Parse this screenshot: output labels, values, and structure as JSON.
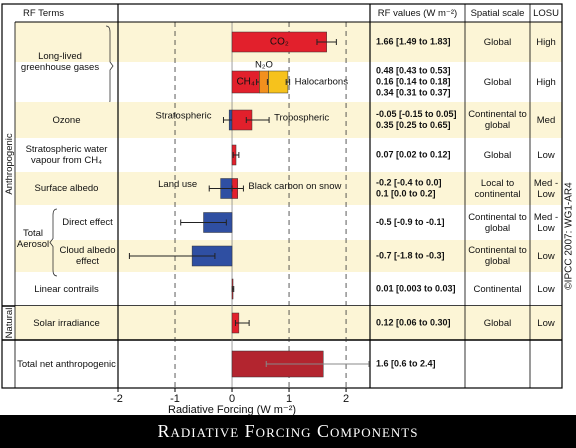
{
  "chart_data": {
    "type": "forcing",
    "title": "Radiative Forcing Components",
    "xlabel": "Radiative Forcing (W m⁻²)",
    "credit": "©IPCC 2007: WG1-AR4",
    "headers": {
      "terms": "RF Terms",
      "values": "RF values (W m⁻²)",
      "scale": "Spatial scale",
      "losu": "LOSU"
    },
    "xlim": [
      -2,
      2.42
    ],
    "xticks": [
      -2,
      -1,
      0,
      1,
      2
    ],
    "grid": true,
    "sections": [
      {
        "name": "Anthropogenic",
        "groups": [
          {
            "label": "Long-lived greenhouse gases",
            "rows": [
              {
                "scale": "Global",
                "losu": "High",
                "bars": [
                  {
                    "name": "CO₂",
                    "value": 1.66,
                    "range": [
                      1.49,
                      1.83
                    ],
                    "value_label": "1.66 [1.49 to 1.83]",
                    "color": "#e2202c"
                  }
                ]
              },
              {
                "scale": "Global",
                "losu": "High",
                "bars": [
                  {
                    "name": "CH₄",
                    "value": 0.48,
                    "range": [
                      0.43,
                      0.53
                    ],
                    "value_label": "0.48 [0.43 to 0.53]",
                    "color": "#e2202c"
                  },
                  {
                    "name": "N₂O",
                    "value": 0.16,
                    "range": [
                      0.14,
                      0.18
                    ],
                    "value_label": "0.16 [0.14 to 0.18]",
                    "color": "#f2901e"
                  },
                  {
                    "name": "Halocarbons",
                    "value": 0.34,
                    "range": [
                      0.31,
                      0.37
                    ],
                    "value_label": "0.34 [0.31 to 0.37]",
                    "color": "#f6c21c"
                  }
                ]
              }
            ]
          },
          {
            "label": "Ozone",
            "rows": [
              {
                "scale": "Continental to global",
                "losu": "Med",
                "bars": [
                  {
                    "name": "Stratospheric",
                    "value": -0.05,
                    "range": [
                      -0.15,
                      0.05
                    ],
                    "value_label": "-0.05 [-0.15 to 0.05]",
                    "color": "#2f4fa2"
                  },
                  {
                    "name": "Tropospheric",
                    "value": 0.35,
                    "range": [
                      0.25,
                      0.65
                    ],
                    "value_label": "0.35 [0.25 to 0.65]",
                    "color": "#e2202c"
                  }
                ]
              }
            ]
          },
          {
            "label": "Stratospheric water vapour from CH₄",
            "rows": [
              {
                "scale": "Global",
                "losu": "Low",
                "bars": [
                  {
                    "value": 0.07,
                    "range": [
                      0.02,
                      0.12
                    ],
                    "value_label": "0.07 [0.02 to 0.12]",
                    "color": "#e2202c"
                  }
                ]
              }
            ]
          },
          {
            "label": "Surface albedo",
            "rows": [
              {
                "scale": "Local to continental",
                "losu": "Med - Low",
                "bars": [
                  {
                    "name": "Land use",
                    "value": -0.2,
                    "range": [
                      -0.4,
                      0.0
                    ],
                    "value_label": "-0.2 [-0.4 to 0.0]",
                    "color": "#2f4fa2"
                  },
                  {
                    "name": "Black carbon on snow",
                    "value": 0.1,
                    "range": [
                      0.0,
                      0.2
                    ],
                    "value_label": "0.1 [0.0 to 0.2]",
                    "color": "#e2202c"
                  }
                ]
              }
            ]
          },
          {
            "label": "Total Aerosol",
            "rows": [
              {
                "label": "Direct effect",
                "scale": "Continental to global",
                "losu": "Med - Low",
                "bars": [
                  {
                    "value": -0.5,
                    "range": [
                      -0.9,
                      -0.1
                    ],
                    "value_label": "-0.5 [-0.9 to -0.1]",
                    "color": "#2f4fa2"
                  }
                ]
              },
              {
                "label": "Cloud albedo effect",
                "scale": "Continental to global",
                "losu": "Low",
                "bars": [
                  {
                    "value": -0.7,
                    "range": [
                      -1.8,
                      -0.3
                    ],
                    "value_label": "-0.7 [-1.8 to -0.3]",
                    "color": "#2f4fa2"
                  }
                ]
              }
            ]
          },
          {
            "label": "Linear contrails",
            "rows": [
              {
                "scale": "Continental",
                "losu": "Low",
                "bars": [
                  {
                    "value": 0.01,
                    "range": [
                      0.003,
                      0.03
                    ],
                    "value_label": "0.01 [0.003 to 0.03]",
                    "color": "#e2202c"
                  }
                ]
              }
            ]
          }
        ]
      },
      {
        "name": "Natural",
        "groups": [
          {
            "label": "Solar irradiance",
            "rows": [
              {
                "scale": "Global",
                "losu": "Low",
                "bars": [
                  {
                    "value": 0.12,
                    "range": [
                      0.06,
                      0.3
                    ],
                    "value_label": "0.12 [0.06 to 0.30]",
                    "color": "#e2202c"
                  }
                ]
              }
            ]
          }
        ]
      }
    ],
    "total": {
      "label": "Total net anthropogenic",
      "value": 1.6,
      "range": [
        0.6,
        2.4
      ],
      "value_label": "1.6 [0.6 to 2.4]",
      "color": "#b3252f"
    }
  }
}
